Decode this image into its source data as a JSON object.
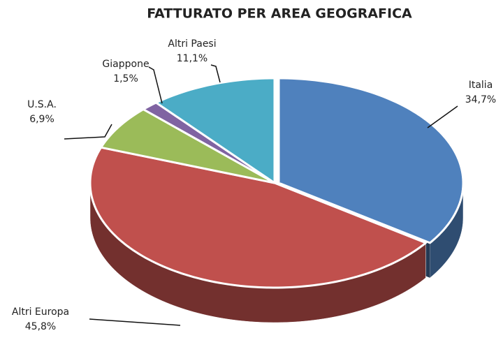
{
  "chart_data": {
    "type": "pie",
    "title": "FATTURATO PER AREA GEOGRAFICA",
    "categories": [
      "Italia",
      "Altri Europa",
      "U.S.A.",
      "Giappone",
      "Altri Paesi"
    ],
    "values": [
      34.7,
      45.8,
      6.9,
      1.5,
      11.1
    ],
    "value_labels": [
      "34,7%",
      "45,8%",
      "6,9%",
      "1,5%",
      "11,1%"
    ],
    "colors": [
      "#4f81bd",
      "#c0504d",
      "#9bbb59",
      "#8064a2",
      "#4bacc6"
    ]
  }
}
